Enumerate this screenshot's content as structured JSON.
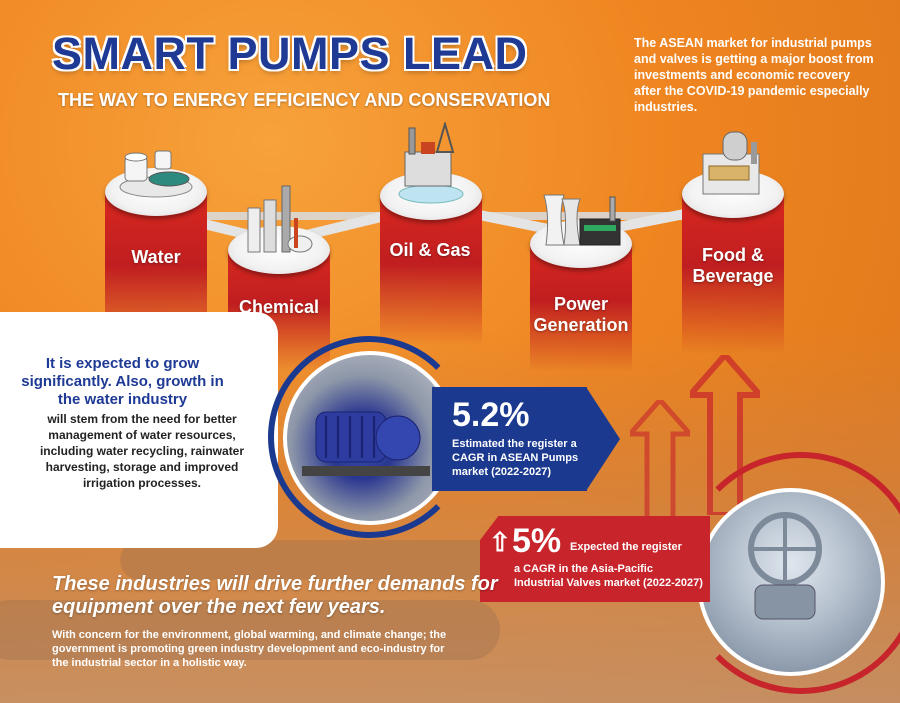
{
  "header": {
    "title": "SMART PUMPS LEAD",
    "subtitle": "THE WAY TO ENERGY EFFICIENCY AND CONSERVATION",
    "intro": "The ASEAN market for industrial pumps and valves is getting a major boost from investments and economic recovery after the COVID-19 pandemic especially industries."
  },
  "industries": [
    {
      "label": "Water",
      "icon": "water-treatment-icon"
    },
    {
      "label": "Chemical",
      "icon": "chemical-plant-icon"
    },
    {
      "label": "Oil & Gas",
      "icon": "oil-rig-icon"
    },
    {
      "label": "Power Generation",
      "icon": "power-plant-icon"
    },
    {
      "label": "Food & Beverage",
      "icon": "food-factory-icon"
    }
  ],
  "callout": {
    "highlight": "It is expected to grow significantly. Also, growth in the water industry",
    "body": "will stem from the need for better management of water resources, including water recycling, rainwater harvesting, storage and improved irrigation processes."
  },
  "stat_pumps": {
    "value": "5.2%",
    "text": "Estimated the register a CAGR in ASEAN Pumps market (2022-2027)"
  },
  "stat_valves": {
    "value": "5%",
    "lead": "Expected the register",
    "text": "a CAGR in the Asia-Pacific Industrial Valves market (2022-2027)"
  },
  "closing": {
    "headline": "These industries will drive further demands for equipment over the next few years.",
    "body": "With concern for the environment, global warming, and climate change; the government is promoting green industry development and eco-industry for the industrial sector in a holistic way."
  },
  "colors": {
    "background": "#f08a20",
    "title_blue": "#1e3a95",
    "pillar_red": "#c7242b",
    "stat_blue": "#1b3a8f"
  }
}
